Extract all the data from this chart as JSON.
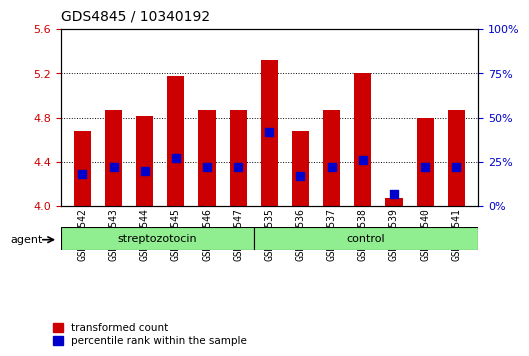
{
  "title": "GDS4845 / 10340192",
  "samples": [
    "GSM978542",
    "GSM978543",
    "GSM978544",
    "GSM978545",
    "GSM978546",
    "GSM978547",
    "GSM978535",
    "GSM978536",
    "GSM978537",
    "GSM978538",
    "GSM978539",
    "GSM978540",
    "GSM978541"
  ],
  "red_values": [
    4.68,
    4.87,
    4.81,
    5.18,
    4.87,
    4.87,
    5.32,
    4.68,
    4.87,
    5.2,
    4.07,
    4.8,
    4.87
  ],
  "blue_percentile": [
    18,
    22,
    20,
    27,
    22,
    22,
    42,
    17,
    22,
    26,
    7,
    22,
    22
  ],
  "ylim_left": [
    4.0,
    5.6
  ],
  "ylim_right": [
    0,
    100
  ],
  "yticks_left": [
    4.0,
    4.4,
    4.8,
    5.2,
    5.6
  ],
  "yticks_right": [
    0,
    25,
    50,
    75,
    100
  ],
  "bar_color": "#CC0000",
  "dot_color": "#0000CC",
  "group_color": "#90EE90",
  "bar_width": 0.55,
  "legend_red": "transformed count",
  "legend_blue": "percentile rank within the sample",
  "group_label_strep": "streptozotocin",
  "group_label_control": "control",
  "agent_label": "agent",
  "strep_count": 6,
  "ctrl_count": 7,
  "left_tick_color": "#CC0000",
  "right_tick_color": "#0000CC",
  "title_fontsize": 10,
  "tick_fontsize": 7,
  "label_fontsize": 8,
  "legend_fontsize": 7.5
}
